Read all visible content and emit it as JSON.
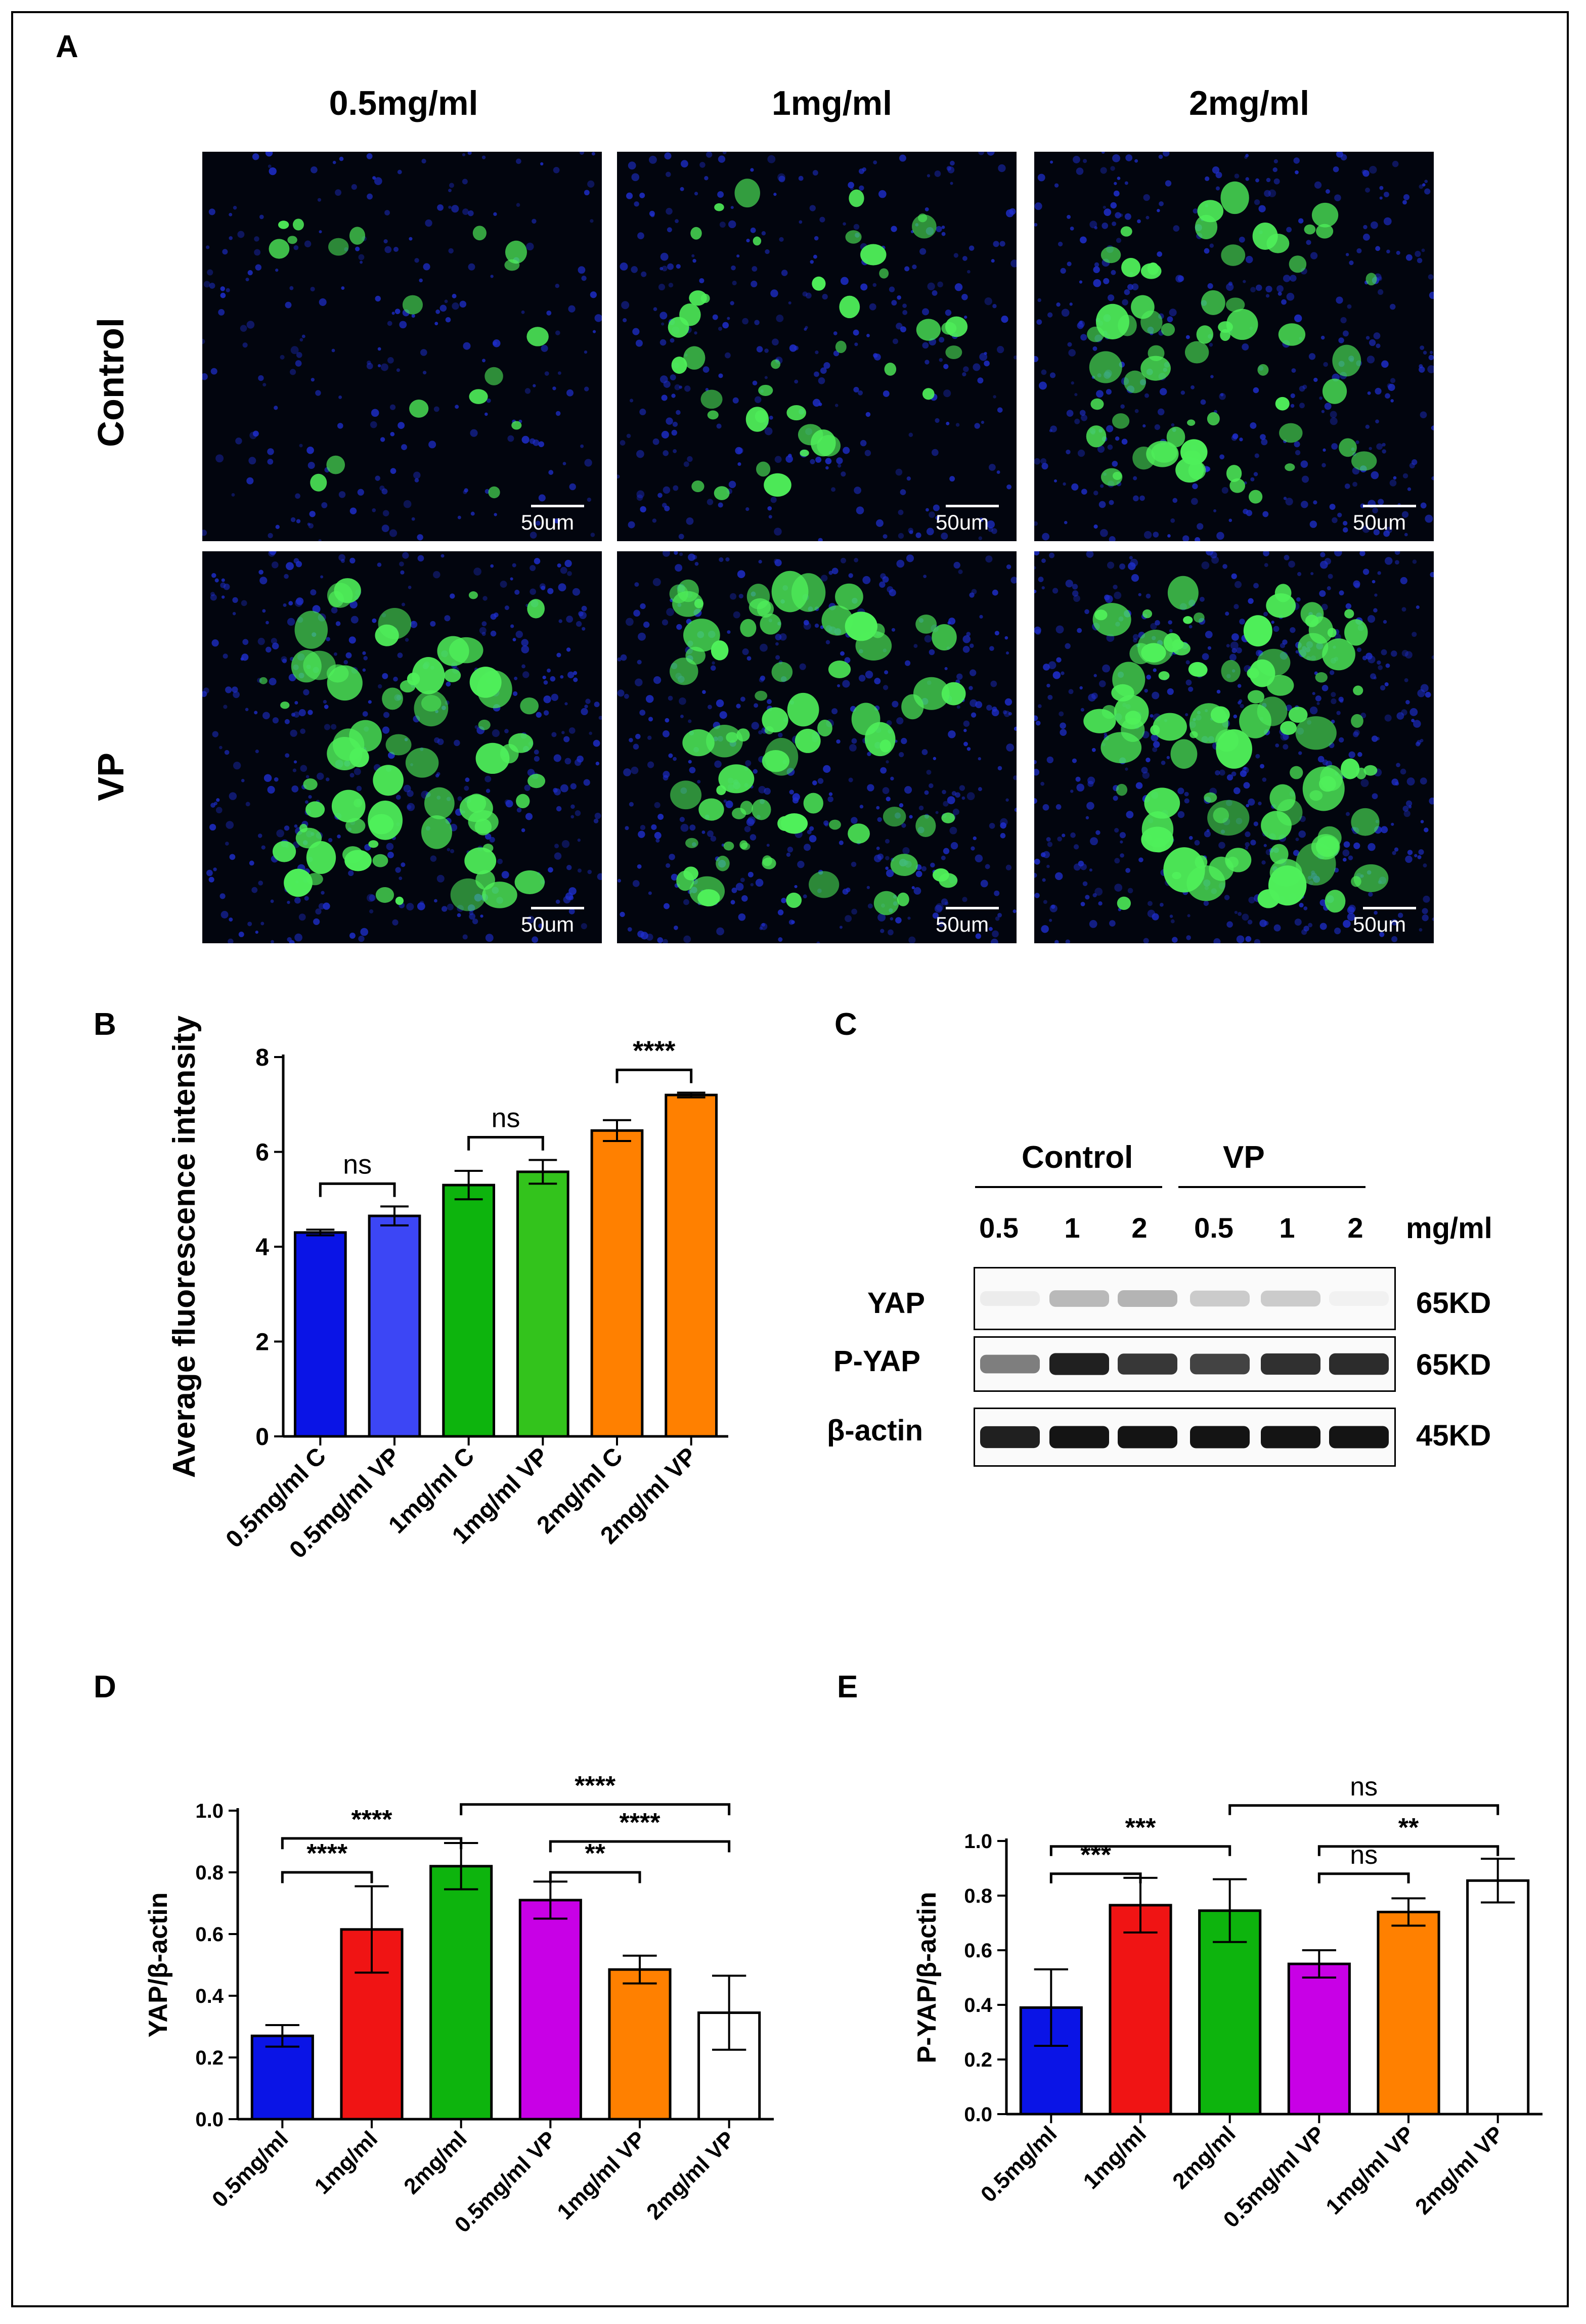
{
  "panels": {
    "A": {
      "label": "A",
      "columns": [
        "0.5mg/ml",
        "1mg/ml",
        "2mg/ml"
      ],
      "rows": [
        "Control",
        "VP"
      ],
      "scale_bar_label": "50um",
      "colors": {
        "nuclei": "#1f2fd0",
        "yap": "#4ff05a"
      }
    },
    "C": {
      "label": "C",
      "groups": [
        "Control",
        "VP"
      ],
      "lanes": [
        "0.5",
        "1",
        "2",
        "0.5",
        "1",
        "2"
      ],
      "unit": "mg/ml",
      "rows": [
        {
          "name": "YAP",
          "kd": "65KD",
          "intensity": [
            0.08,
            0.3,
            0.32,
            0.22,
            0.22,
            0.06
          ]
        },
        {
          "name": "P-YAP",
          "kd": "65KD",
          "intensity": [
            0.55,
            0.95,
            0.85,
            0.8,
            0.88,
            0.9
          ]
        },
        {
          "name": "β-actin",
          "kd": "45KD",
          "intensity": [
            0.95,
            1.0,
            1.0,
            1.0,
            1.0,
            1.0
          ]
        }
      ]
    }
  },
  "chart_data": [
    {
      "label": "B",
      "type": "bar",
      "categories": [
        "0.5mg/ml C",
        "0.5mg/ml VP",
        "1mg/ml C",
        "1mg/ml VP",
        "2mg/ml C",
        "2mg/ml VP"
      ],
      "values": [
        4.3,
        4.65,
        5.3,
        5.58,
        6.45,
        7.2
      ],
      "errors": [
        0.06,
        0.2,
        0.3,
        0.25,
        0.22,
        0.05
      ],
      "colors": [
        "#0a14e6",
        "#3c46f5",
        "#0db40d",
        "#33c31c",
        "#ff8000",
        "#ff8000"
      ],
      "ylabel": "Average fluorescence intensity",
      "ylim": [
        0,
        8
      ],
      "yticks": [
        "0",
        "2",
        "4",
        "6",
        "8"
      ],
      "comparisons": [
        {
          "a": 0,
          "b": 1,
          "text": "ns"
        },
        {
          "a": 2,
          "b": 3,
          "text": "ns"
        },
        {
          "a": 4,
          "b": 5,
          "text": "****"
        }
      ]
    },
    {
      "label": "D",
      "type": "bar",
      "categories": [
        "0.5mg/ml",
        "1mg/ml",
        "2mg/ml",
        "0.5mg/ml VP",
        "1mg/ml VP",
        "2mg/ml VP"
      ],
      "values": [
        0.27,
        0.615,
        0.82,
        0.71,
        0.485,
        0.345
      ],
      "errors": [
        0.035,
        0.14,
        0.075,
        0.06,
        0.045,
        0.12
      ],
      "colors": [
        "#0a14e6",
        "#f01414",
        "#0db40d",
        "#c800e6",
        "#ff8000",
        "#ffffff"
      ],
      "ylabel": "YAP/β-actin",
      "ylim": [
        0,
        1.0
      ],
      "yticks": [
        "0.0",
        "0.2",
        "0.4",
        "0.6",
        "0.8",
        "1.0"
      ],
      "comparisons": [
        {
          "a": 0,
          "b": 1,
          "y": 0.8,
          "text": "****"
        },
        {
          "a": 0,
          "b": 2,
          "y": 0.91,
          "text": "****"
        },
        {
          "a": 3,
          "b": 4,
          "y": 0.8,
          "text": "**"
        },
        {
          "a": 3,
          "b": 5,
          "y": 0.9,
          "text": "****"
        },
        {
          "a": 2,
          "b": 5,
          "y": 1.02,
          "text": "****"
        }
      ]
    },
    {
      "label": "E",
      "type": "bar",
      "categories": [
        "0.5mg/ml",
        "1mg/ml",
        "2mg/ml",
        "0.5mg/ml VP",
        "1mg/ml VP",
        "2mg/ml VP"
      ],
      "values": [
        0.39,
        0.765,
        0.745,
        0.55,
        0.74,
        0.855
      ],
      "errors": [
        0.14,
        0.1,
        0.115,
        0.05,
        0.05,
        0.08
      ],
      "colors": [
        "#0a14e6",
        "#f01414",
        "#0db40d",
        "#c800e6",
        "#ff8000",
        "#ffffff"
      ],
      "ylabel": "P-YAP/β-actin",
      "ylim": [
        0,
        1.0
      ],
      "yticks": [
        "0.0",
        "0.2",
        "0.4",
        "0.6",
        "0.8",
        "1.0"
      ],
      "comparisons": [
        {
          "a": 0,
          "b": 1,
          "y": 0.88,
          "text": "***"
        },
        {
          "a": 0,
          "b": 2,
          "y": 0.98,
          "text": "***"
        },
        {
          "a": 3,
          "b": 4,
          "y": 0.88,
          "text": "ns"
        },
        {
          "a": 3,
          "b": 5,
          "y": 0.98,
          "text": "**"
        },
        {
          "a": 2,
          "b": 5,
          "y": 1.13,
          "text": "ns"
        }
      ]
    }
  ]
}
